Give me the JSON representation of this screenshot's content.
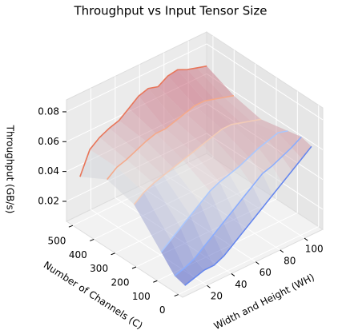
{
  "chart_data": {
    "type": "surface3d",
    "title": "Throughput vs Input Tensor Size",
    "xlabel": "Width and Height (WH)",
    "ylabel": "Number of Channels (C)",
    "zlabel": "Throughput (GB/s)",
    "x": [
      8,
      16,
      24,
      32,
      40,
      48,
      56,
      64,
      72,
      80,
      88,
      96,
      104,
      112
    ],
    "xlim": [
      0,
      115
    ],
    "xticks": [
      20,
      40,
      60,
      80,
      100
    ],
    "ylim": [
      -20,
      530
    ],
    "yticks": [
      0,
      100,
      200,
      300,
      400,
      500
    ],
    "zlim": [
      0.0066,
      0.088
    ],
    "zticks": [
      0.02,
      0.04,
      0.06,
      0.08
    ],
    "colormap": [
      "#3b4cc0",
      "#dddddd",
      "#b40426"
    ],
    "series": [
      {
        "channels": 512,
        "color": "#e8765a",
        "values": [
          0.035,
          0.05,
          0.055,
          0.058,
          0.06,
          0.065,
          0.07,
          0.072,
          0.07,
          0.074,
          0.075,
          0.072,
          0.07,
          0.068
        ]
      },
      {
        "channels": 384,
        "color": "#f4a98a",
        "values": [
          0.045,
          0.05,
          0.052,
          0.055,
          0.058,
          0.06,
          0.06,
          0.062,
          0.064,
          0.066,
          0.066,
          0.064,
          0.062,
          0.06
        ]
      },
      {
        "channels": 256,
        "color": "#f2cbb7",
        "values": [
          0.04,
          0.045,
          0.048,
          0.05,
          0.052,
          0.054,
          0.056,
          0.058,
          0.06,
          0.062,
          0.062,
          0.06,
          0.058,
          0.056
        ]
      },
      {
        "channels": 128,
        "color": "#aac7fd",
        "values": [
          0.02,
          0.025,
          0.03,
          0.035,
          0.04,
          0.045,
          0.048,
          0.05,
          0.052,
          0.055,
          0.058,
          0.06,
          0.062,
          0.06
        ]
      },
      {
        "channels": 64,
        "color": "#8badfd",
        "values": [
          0.01,
          0.012,
          0.015,
          0.02,
          0.025,
          0.03,
          0.035,
          0.04,
          0.045,
          0.05,
          0.052,
          0.055,
          0.058,
          0.062
        ]
      },
      {
        "channels": 16,
        "color": "#6687ed",
        "values": [
          0.008,
          0.01,
          0.012,
          0.012,
          0.015,
          0.02,
          0.025,
          0.03,
          0.035,
          0.04,
          0.045,
          0.05,
          0.055,
          0.06
        ]
      }
    ]
  }
}
